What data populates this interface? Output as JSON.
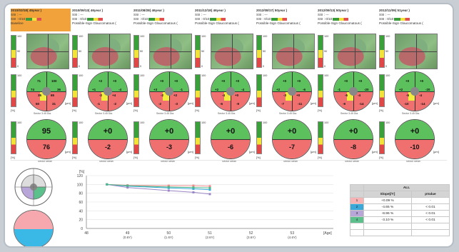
{
  "columns": [
    {
      "date": "2010/03/18( 45year )",
      "ssi": "SSI : ---",
      "ssi_blank": "SSI : 0/10",
      "status": "Baseline",
      "is_base": true,
      "sectors": [
        "71",
        "100",
        "74",
        "36",
        "35",
        "65",
        "50",
        "31"
      ],
      "superior": "95",
      "inferior": "76"
    },
    {
      "date": "2010/09/13( 46year )",
      "ssi": "SSI : ---",
      "ssi_blank": "SSI : 0/10",
      "status": "Possible-Sign Glaucomatous (",
      "is_base": false,
      "sectors": [
        "+2",
        "+0",
        "+1",
        "-4",
        "-2",
        "+4",
        "-1",
        "-2"
      ],
      "superior": "+0",
      "inferior": "-2"
    },
    {
      "date": "2011/08/28( 46year )",
      "ssi": "SSI : ---",
      "ssi_blank": "SSI : 0/10",
      "status": "Possible-Sign Glaucomatous (",
      "is_base": false,
      "sectors": [
        "+0",
        "+0",
        "+3",
        "-1",
        "-2",
        "+2",
        "-2",
        "-3"
      ],
      "superior": "+0",
      "inferior": "-3"
    },
    {
      "date": "2011/12/18( 46year )",
      "ssi": "SSI : ---",
      "ssi_blank": "SSI : 0/10",
      "status": "Possible-Sign Glaucomatous (",
      "is_base": false,
      "sectors": [
        "+0",
        "+0",
        "+2",
        "-4",
        "-4",
        "+0",
        "-6",
        "-9"
      ],
      "superior": "+0",
      "inferior": "-6"
    },
    {
      "date": "2012/08/17( 50year )",
      "ssi": "SSI : ---",
      "ssi_blank": "SSI : 0/10",
      "status": "Possible-Sign Glaucomatous (",
      "is_base": false,
      "sectors": [
        "+0",
        "+0",
        "+2",
        "-6",
        "-3",
        "+0",
        "-7",
        "-11"
      ],
      "superior": "+0",
      "inferior": "-7"
    },
    {
      "date": "2012/09/13( 50year )",
      "ssi": "SSI : ---",
      "ssi_blank": "SSI : 0/10",
      "status": "Possible-Sign Glaucomatous (",
      "is_base": false,
      "sectors": [
        "+0",
        "+0",
        "-1",
        "-20",
        "-5",
        "-4",
        "-9",
        "-14"
      ],
      "superior": "+0",
      "inferior": "-8"
    },
    {
      "date": "2012/11/09( 51year )",
      "ssi": "SSI : ---",
      "ssi_blank": "SSI : 0/10",
      "status": "Possible-Sign Glaucomatous (",
      "is_base": false,
      "sectors": [
        "+0",
        "+0",
        "+2",
        "-20",
        "-5",
        "-4",
        "-10",
        "-14"
      ],
      "superior": "+0",
      "inferior": "-10"
    }
  ],
  "scale_labels": {
    "top": "100",
    "mid": "50",
    "bot": "0"
  },
  "unit_pct": "[%]",
  "unit_um": "[μm]",
  "mp_caption": "Sector 3.45 Dia.",
  "big_caption": "Sector Mean",
  "colors": {
    "green": "#5cc05c",
    "yellow": "#f2ec3a",
    "red": "#f07070",
    "base_header": "#f2a23a"
  },
  "chart_data": {
    "type": "line",
    "title": "",
    "ylabel": "[%]",
    "xlabel": "[Age]",
    "ylim": [
      0,
      120
    ],
    "xlim": [
      48,
      54
    ],
    "yticks": [
      "0",
      "20",
      "40",
      "60",
      "80",
      "100",
      "120"
    ],
    "xticks": [
      {
        "v": 48,
        "l1": "48",
        "l2": ""
      },
      {
        "v": 49,
        "l1": "49",
        "l2": "(0.6Y)"
      },
      {
        "v": 50,
        "l1": "50",
        "l2": "(1.6Y)"
      },
      {
        "v": 51,
        "l1": "51",
        "l2": "(2.6Y)"
      },
      {
        "v": 52,
        "l1": "52",
        "l2": "(3.6Y)"
      },
      {
        "v": 53,
        "l1": "53",
        "l2": "(4.6Y)"
      }
    ],
    "series": [
      {
        "color": "#f28a8a",
        "x": [
          48.5,
          49,
          50,
          50.6,
          51
        ],
        "y": [
          100,
          98,
          97,
          97,
          96
        ]
      },
      {
        "color": "#3aa8d8",
        "x": [
          48.5,
          49,
          50,
          50.6,
          51
        ],
        "y": [
          100,
          96,
          92,
          90,
          88
        ]
      },
      {
        "color": "#9a86c6",
        "x": [
          48.5,
          49,
          50,
          50.6,
          51
        ],
        "y": [
          100,
          93,
          86,
          82,
          78
        ]
      },
      {
        "color": "#4cb88c",
        "x": [
          48.5,
          49,
          50,
          50.6,
          51
        ],
        "y": [
          100,
          97,
          94,
          93,
          92
        ]
      }
    ]
  },
  "slope_table": {
    "group": "ALL",
    "col_slope": "Slope[/Y]",
    "col_p": "pValue",
    "rows": [
      {
        "id": "1",
        "color": "#f7b3b3",
        "slope": "+0.09 %",
        "p": "-"
      },
      {
        "id": "2",
        "color": "#3aa8d8",
        "slope": "-4.65 %",
        "p": "< 0.01"
      },
      {
        "id": "3",
        "color": "#b9a6d8",
        "slope": "-8.96 %",
        "p": "< 0.01"
      },
      {
        "id": "4",
        "color": "#5cc08c",
        "slope": "-3.10 %",
        "p": "< 0.01"
      }
    ]
  }
}
